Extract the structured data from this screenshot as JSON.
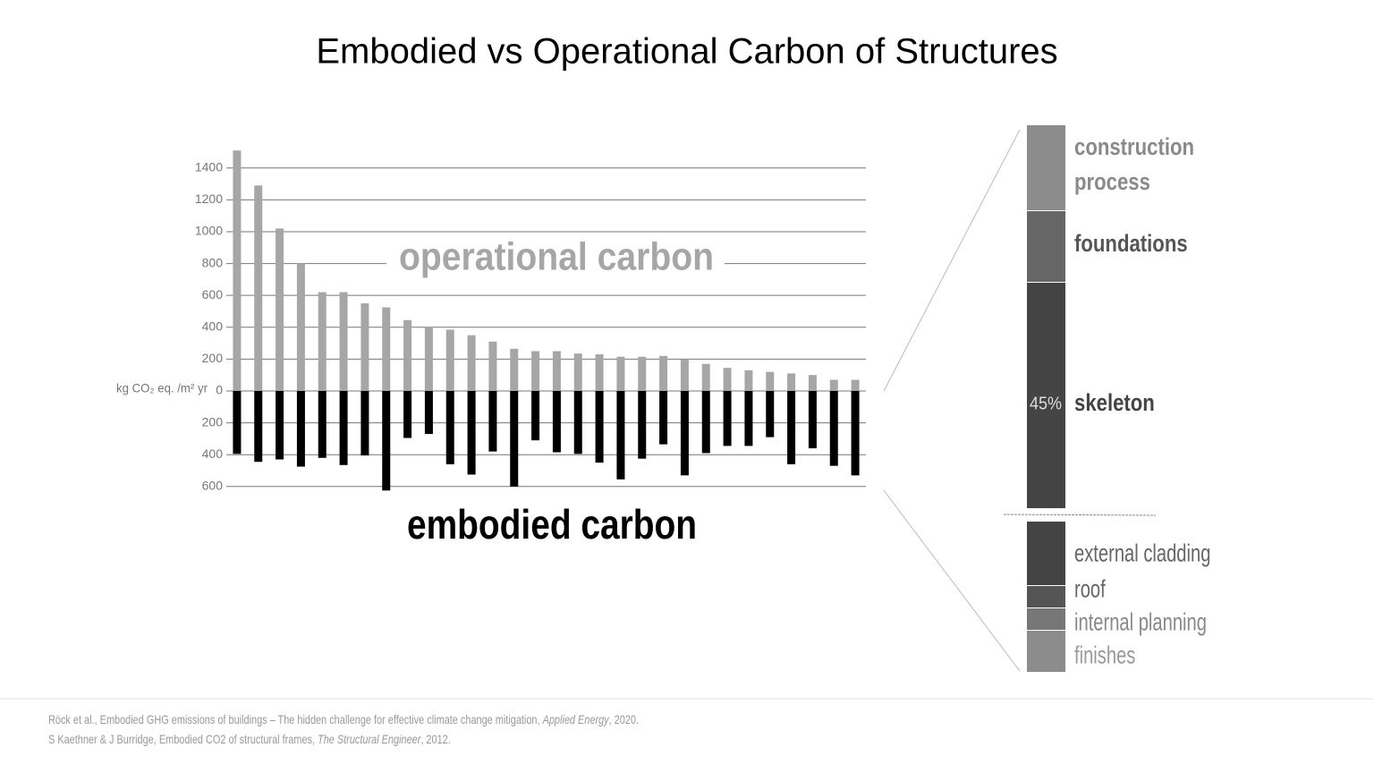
{
  "chart_data": {
    "type": "diverging-bar",
    "title": "Embodied vs Operational Carbon of Structures",
    "y_axis_label": "kg CO₂ eq. /m² yr",
    "annotations": {
      "operational": "operational carbon",
      "embodied": "embodied carbon"
    },
    "series": [
      {
        "name": "operational carbon",
        "color": "#a6a6a6",
        "values": [
          1510,
          1290,
          1020,
          800,
          620,
          620,
          550,
          525,
          445,
          400,
          385,
          350,
          310,
          265,
          250,
          250,
          235,
          230,
          215,
          215,
          220,
          200,
          170,
          145,
          130,
          120,
          110,
          100,
          70,
          70
        ]
      },
      {
        "name": "embodied carbon",
        "color": "#000000",
        "values": [
          -395,
          -445,
          -430,
          -475,
          -420,
          -465,
          -405,
          -625,
          -295,
          -270,
          -460,
          -525,
          -380,
          -600,
          -310,
          -385,
          -395,
          -450,
          -555,
          -425,
          -335,
          -530,
          -390,
          -345,
          -345,
          -290,
          -460,
          -360,
          -470,
          -530
        ]
      }
    ],
    "ylim": [
      -650,
      1520
    ],
    "yticks": [
      {
        "value": -600,
        "label": "600"
      },
      {
        "value": -400,
        "label": "400"
      },
      {
        "value": -200,
        "label": "200"
      },
      0,
      200,
      400,
      600,
      800,
      1000,
      1200,
      1400
    ],
    "grid": true
  },
  "breakdown": {
    "segments": [
      {
        "label": [
          "construction",
          "process"
        ],
        "color": "#8c8c8c",
        "text_color": "#8a8a8a",
        "bold": true
      },
      {
        "label": [
          "foundations"
        ],
        "color": "#666666",
        "text_color": "#555555",
        "bold": true
      },
      {
        "label": [
          "skeleton"
        ],
        "color": "#444444",
        "text_color": "#444444",
        "bold": true
      },
      {
        "label": [
          "external cladding"
        ],
        "color": "#444444",
        "text_color": "#666666",
        "bold": false
      },
      {
        "label": [
          "roof"
        ],
        "color": "#555555",
        "text_color": "#666666",
        "bold": false
      },
      {
        "label": [
          "internal planning"
        ],
        "color": "#777777",
        "text_color": "#888888",
        "bold": false
      },
      {
        "label": [
          "finishes"
        ],
        "color": "#8c8c8c",
        "text_color": "#999999",
        "bold": false
      }
    ],
    "skeleton_share": "45%"
  },
  "references": [
    {
      "before": "Röck et al., Embodied GHG emissions of buildings – The hidden challenge for effective climate change mitigation, ",
      "journal": "Applied Energy",
      "after": ", 2020."
    },
    {
      "before": "S Kaethner & J Burridge, Embodied CO2 of structural frames, ",
      "journal": "The Structural Engineer",
      "after": ", 2012."
    }
  ]
}
